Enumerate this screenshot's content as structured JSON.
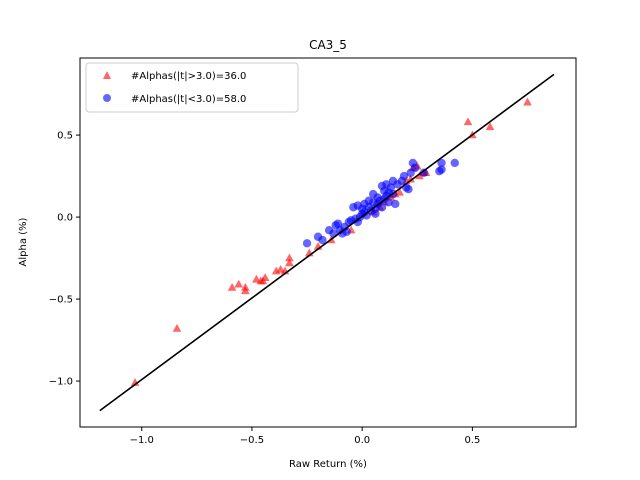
{
  "chart_data": {
    "type": "scatter",
    "title": "CA3_5",
    "xlabel": "Raw Return (%)",
    "ylabel": "Alpha (%)",
    "xlim": [
      -1.28,
      0.97
    ],
    "ylim": [
      -1.28,
      0.97
    ],
    "xticks": [
      -1.0,
      -0.5,
      0.0,
      0.5
    ],
    "xtick_labels": [
      "−1.0",
      "−0.5",
      "0.0",
      "0.5"
    ],
    "yticks": [
      -1.0,
      -0.5,
      0.0,
      0.5
    ],
    "ytick_labels": [
      "−1.0",
      "−0.5",
      "0.0",
      "0.5"
    ],
    "grid": false,
    "legend_position": "top-left",
    "fit_line": {
      "x": [
        -1.19,
        0.87
      ],
      "y": [
        -1.18,
        0.87
      ],
      "color": "#000000"
    },
    "series": [
      {
        "name": "#Alphas(|t|>3.0)=36.0",
        "marker": "triangle",
        "color": "#ff0000",
        "points": [
          [
            -1.03,
            -1.01
          ],
          [
            -0.84,
            -0.68
          ],
          [
            -0.59,
            -0.43
          ],
          [
            -0.56,
            -0.41
          ],
          [
            -0.53,
            -0.45
          ],
          [
            -0.53,
            -0.43
          ],
          [
            -0.48,
            -0.38
          ],
          [
            -0.46,
            -0.39
          ],
          [
            -0.45,
            -0.39
          ],
          [
            -0.44,
            -0.37
          ],
          [
            -0.39,
            -0.33
          ],
          [
            -0.37,
            -0.32
          ],
          [
            -0.35,
            -0.33
          ],
          [
            -0.33,
            -0.28
          ],
          [
            -0.33,
            -0.25
          ],
          [
            -0.24,
            -0.22
          ],
          [
            -0.14,
            -0.14
          ],
          [
            0.15,
            0.14
          ],
          [
            0.17,
            0.15
          ],
          [
            0.2,
            0.22
          ],
          [
            0.22,
            0.23
          ],
          [
            0.23,
            0.3
          ],
          [
            0.25,
            0.31
          ],
          [
            0.28,
            0.27
          ],
          [
            0.29,
            0.27
          ],
          [
            0.48,
            0.58
          ],
          [
            0.5,
            0.5
          ],
          [
            0.58,
            0.55
          ],
          [
            0.75,
            0.7
          ],
          [
            -0.05,
            -0.08
          ],
          [
            0.05,
            0.03
          ],
          [
            0.1,
            0.09
          ],
          [
            -0.2,
            -0.18
          ],
          [
            0.13,
            0.12
          ],
          [
            0.26,
            0.25
          ],
          [
            0.08,
            0.06
          ]
        ]
      },
      {
        "name": "#Alphas(|t|<3.0)=58.0",
        "marker": "circle",
        "color": "#0000ff",
        "points": [
          [
            -0.25,
            -0.16
          ],
          [
            -0.2,
            -0.12
          ],
          [
            -0.18,
            -0.14
          ],
          [
            -0.15,
            -0.08
          ],
          [
            -0.12,
            -0.05
          ],
          [
            -0.11,
            -0.04
          ],
          [
            -0.1,
            -0.08
          ],
          [
            -0.09,
            -0.1
          ],
          [
            -0.08,
            -0.06
          ],
          [
            -0.07,
            -0.09
          ],
          [
            -0.06,
            -0.03
          ],
          [
            -0.05,
            -0.02
          ],
          [
            -0.04,
            0.06
          ],
          [
            -0.03,
            -0.01
          ],
          [
            -0.02,
            -0.03
          ],
          [
            -0.01,
            0.0
          ],
          [
            0.0,
            0.02
          ],
          [
            0.01,
            0.08
          ],
          [
            0.01,
            0.03
          ],
          [
            0.02,
            0.01
          ],
          [
            0.03,
            0.06
          ],
          [
            0.04,
            0.04
          ],
          [
            0.05,
            0.14
          ],
          [
            0.05,
            0.09
          ],
          [
            0.06,
            0.05
          ],
          [
            0.07,
            0.12
          ],
          [
            0.07,
            0.08
          ],
          [
            0.08,
            0.1
          ],
          [
            0.09,
            0.19
          ],
          [
            0.09,
            0.06
          ],
          [
            0.1,
            0.16
          ],
          [
            0.1,
            0.11
          ],
          [
            0.11,
            0.2
          ],
          [
            0.11,
            0.13
          ],
          [
            0.12,
            0.15
          ],
          [
            0.12,
            0.09
          ],
          [
            0.13,
            0.18
          ],
          [
            0.14,
            0.22
          ],
          [
            0.14,
            0.14
          ],
          [
            0.15,
            0.08
          ],
          [
            0.16,
            0.2
          ],
          [
            0.18,
            0.22
          ],
          [
            0.19,
            0.25
          ],
          [
            0.2,
            0.18
          ],
          [
            0.21,
            0.17
          ],
          [
            0.22,
            0.27
          ],
          [
            0.23,
            0.33
          ],
          [
            0.24,
            0.3
          ],
          [
            0.28,
            0.27
          ],
          [
            0.35,
            0.28
          ],
          [
            0.36,
            0.29
          ],
          [
            0.36,
            0.33
          ],
          [
            0.42,
            0.33
          ],
          [
            -0.02,
            0.07
          ],
          [
            0.03,
            0.1
          ],
          [
            0.0,
            0.05
          ],
          [
            -0.13,
            -0.1
          ],
          [
            0.06,
            0.02
          ]
        ]
      }
    ]
  }
}
